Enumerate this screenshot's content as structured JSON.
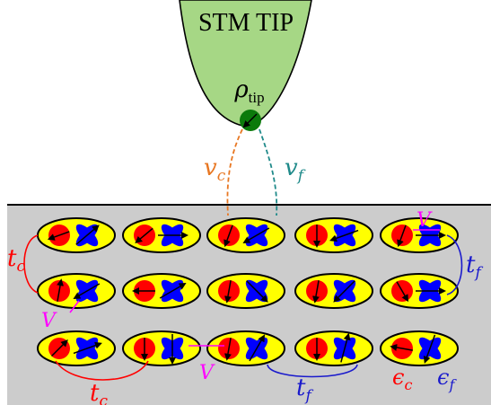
{
  "tip": {
    "label": "STM TIP",
    "density_label": "ρ",
    "density_subscript": "tip",
    "fill": "#a6d785",
    "atom_color": "#0b7a0b"
  },
  "couplings": {
    "vc": {
      "symbol": "v",
      "subscript": "c",
      "color": "#e87722"
    },
    "vf": {
      "symbol": "v",
      "subscript": "f",
      "color": "#1f8a8a"
    }
  },
  "labels": {
    "tc_top": {
      "symbol": "t",
      "subscript": "c",
      "color": "#ff0000"
    },
    "tc_bottom": {
      "symbol": "t",
      "subscript": "c",
      "color": "#ff0000"
    },
    "tf_right": {
      "symbol": "t",
      "subscript": "f",
      "color": "#1a1acc"
    },
    "tf_bottom": {
      "symbol": "t",
      "subscript": "f",
      "color": "#1a1acc"
    },
    "V_top": {
      "symbol": "V",
      "color": "#ff00ff"
    },
    "V_left": {
      "symbol": "V",
      "color": "#ff00ff"
    },
    "V_mid": {
      "symbol": "V",
      "color": "#ff00ff"
    },
    "eps_c": {
      "symbol": "ϵ",
      "subscript": "c",
      "color": "#ff0000"
    },
    "eps_f": {
      "symbol": "ϵ",
      "subscript": "f",
      "color": "#1a1acc"
    }
  },
  "surface": {
    "fill": "#cccccc"
  },
  "site_colors": {
    "ellipse": "#ffff00",
    "c_orbital": "#ff0000",
    "f_orbital": "#0000ff"
  },
  "lattice": {
    "rows": 3,
    "cols": 5,
    "sites": [
      {
        "c_spin": 200,
        "f_spin": 40
      },
      {
        "c_spin": 220,
        "f_spin": 0
      },
      {
        "c_spin": 250,
        "f_spin": 210
      },
      {
        "c_spin": 270,
        "f_spin": 200
      },
      {
        "c_spin": 250,
        "f_spin": 0
      },
      {
        "c_spin": 80,
        "f_spin": 210
      },
      {
        "c_spin": 180,
        "f_spin": 30
      },
      {
        "c_spin": 260,
        "f_spin": 315
      },
      {
        "c_spin": 260,
        "f_spin": 225
      },
      {
        "c_spin": 300,
        "f_spin": 0
      },
      {
        "c_spin": 45,
        "f_spin": 20
      },
      {
        "c_spin": 270,
        "f_spin": 270
      },
      {
        "c_spin": 260,
        "f_spin": 60
      },
      {
        "c_spin": 270,
        "f_spin": 75
      },
      {
        "c_spin": 170,
        "f_spin": 250
      }
    ]
  }
}
